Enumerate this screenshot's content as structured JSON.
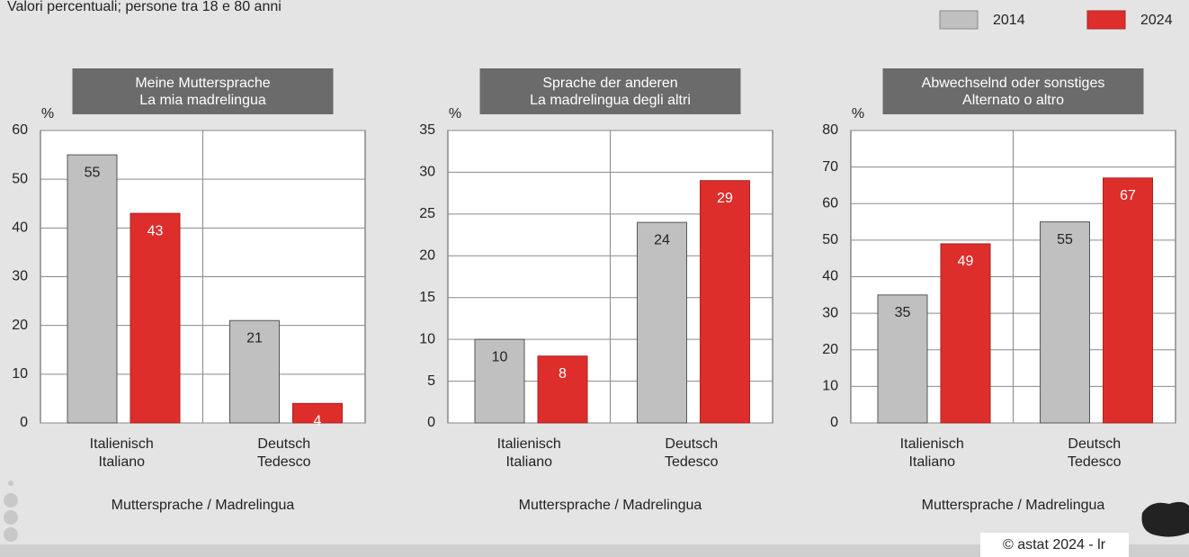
{
  "subtitle": "Valori percentuali; persone tra 18 e 80 anni",
  "footer": "© astat 2024 - lr",
  "chart_data": [
    {
      "type": "bar",
      "title": [
        "Meine Muttersprache",
        "La mia madrelingua"
      ],
      "y_label": "%",
      "x_label": "Muttersprache / Madrelingua",
      "categories": [
        [
          "Italienisch",
          "Italiano"
        ],
        [
          "Deutsch",
          "Tedesco"
        ]
      ],
      "series": [
        {
          "name": "2014",
          "color": "#c0c0c0",
          "values": [
            55,
            21
          ]
        },
        {
          "name": "2024",
          "color": "#dd2e2c",
          "values": [
            43,
            4
          ]
        }
      ],
      "ylim": [
        0,
        60
      ],
      "yticks": [
        0,
        10,
        20,
        30,
        40,
        50,
        60
      ],
      "grid": true
    },
    {
      "type": "bar",
      "title": [
        "Sprache der anderen",
        "La madrelingua degli altri"
      ],
      "y_label": "%",
      "x_label": "Muttersprache / Madrelingua",
      "categories": [
        [
          "Italienisch",
          "Italiano"
        ],
        [
          "Deutsch",
          "Tedesco"
        ]
      ],
      "series": [
        {
          "color": "#c0c0c0",
          "values": [
            10,
            24
          ]
        },
        {
          "color": "#dd2e2c",
          "values": [
            8,
            29
          ]
        }
      ],
      "ylim": [
        0,
        35
      ],
      "yticks": [
        0,
        5,
        10,
        15,
        20,
        25,
        30,
        35
      ],
      "grid": true
    },
    {
      "type": "bar",
      "title": [
        "Abwechselnd oder sonstiges",
        "Alternato o altro"
      ],
      "y_label": "%",
      "x_label": "Muttersprache / Madrelingua",
      "categories": [
        [
          "Italienisch",
          "Italiano"
        ],
        [
          "Deutsch",
          "Tedesco"
        ]
      ],
      "series": [
        {
          "color": "#c0c0c0",
          "values": [
            35,
            55
          ]
        },
        {
          "color": "#dd2e2c",
          "values": [
            49,
            67
          ]
        }
      ],
      "ylim": [
        0,
        80
      ],
      "yticks": [
        0,
        10,
        20,
        30,
        40,
        50,
        60,
        70,
        80
      ],
      "grid": true
    }
  ]
}
